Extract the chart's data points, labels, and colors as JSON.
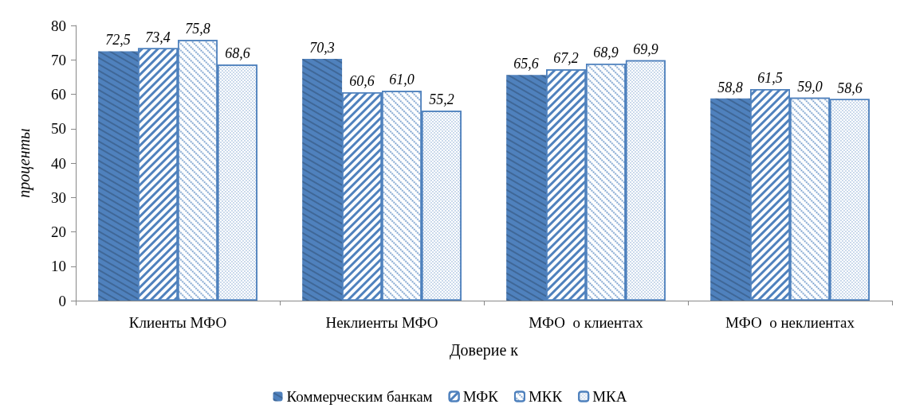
{
  "chart_data": {
    "type": "bar",
    "xlabel": "Доверие к",
    "ylabel": "проценты",
    "categories": [
      "Клиенты МФО",
      "Неклиенты МФО",
      "МФО  о клиентах",
      "МФО  о неклиентах"
    ],
    "series": [
      {
        "name": "Коммерческим банкам",
        "color": "#4f81bd",
        "values": [
          72.5,
          70.3,
          65.6,
          58.8
        ],
        "value_labels": [
          "72,5",
          "70,3",
          "65,6",
          "58,8"
        ]
      },
      {
        "name": "МФК",
        "color": "#4f81bd",
        "values": [
          73.4,
          60.6,
          67.2,
          61.5
        ],
        "value_labels": [
          "73,4",
          "60,6",
          "67,2",
          "61,5"
        ]
      },
      {
        "name": "МКК",
        "color": "#4f81bd",
        "values": [
          75.8,
          61.0,
          68.9,
          59.0
        ],
        "value_labels": [
          "75,8",
          "61,0",
          "68,9",
          "59,0"
        ]
      },
      {
        "name": "МКА",
        "color": "#4f81bd",
        "values": [
          68.6,
          55.2,
          69.9,
          58.6
        ],
        "value_labels": [
          "68,6",
          "55,2",
          "69,9",
          "58,6"
        ]
      }
    ],
    "ylim": [
      0,
      80
    ],
    "yticks": [
      0,
      10,
      20,
      30,
      40,
      50,
      60,
      70,
      80
    ],
    "grid": false,
    "legend": "bottom"
  }
}
